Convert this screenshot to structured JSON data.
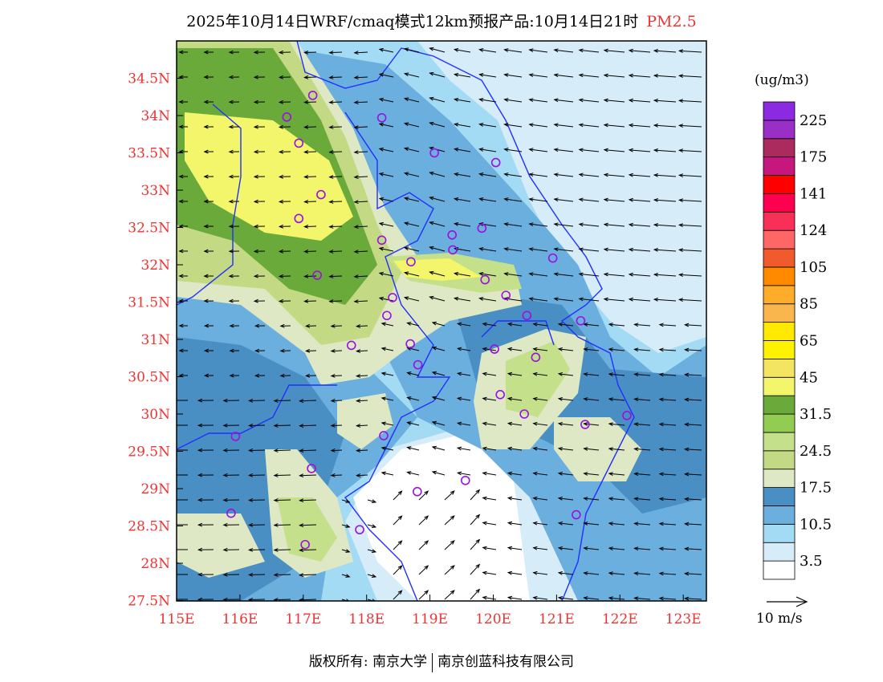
{
  "title": {
    "main": "2025年10月14日WRF/cmaq模式12km预报产品:10月14日21时",
    "species": "PM2.5"
  },
  "species_color": "#e33333",
  "axes": {
    "lon_ticks": [
      "115E",
      "116E",
      "117E",
      "118E",
      "119E",
      "120E",
      "121E",
      "122E",
      "123E"
    ],
    "lon_values": [
      115,
      116,
      117,
      118,
      119,
      120,
      121,
      122,
      123
    ],
    "lat_ticks": [
      "27.5N",
      "28N",
      "28.5N",
      "29N",
      "29.5N",
      "30N",
      "30.5N",
      "31N",
      "31.5N",
      "32N",
      "32.5N",
      "33N",
      "33.5N",
      "34N",
      "34.5N"
    ],
    "lat_values": [
      27.5,
      28,
      28.5,
      29,
      29.5,
      30,
      30.5,
      31,
      31.5,
      32,
      32.5,
      33,
      33.5,
      34,
      34.5
    ],
    "lon_range": [
      115,
      123.4
    ],
    "lat_range": [
      27.5,
      35.0
    ]
  },
  "colorbar": {
    "unit": "(ug/m3)",
    "colors": [
      "#ffffff",
      "#d6ecf8",
      "#a4dbf4",
      "#6aafdd",
      "#4a8fc3",
      "#dfe8c4",
      "#c3d983",
      "#c5e08a",
      "#93cc52",
      "#6aaa3a",
      "#f3f56a",
      "#f3e461",
      "#fff200",
      "#ffe900",
      "#f8b64d",
      "#ffac2a",
      "#ff8a00",
      "#f05a2c",
      "#ff6767",
      "#f83058",
      "#ff0050",
      "#ff0000",
      "#c6177f",
      "#ac2b5e",
      "#9a2fc6",
      "#8b2ae0"
    ],
    "labels": [
      "3.5",
      "10.5",
      "17.5",
      "24.5",
      "31.5",
      "45",
      "65",
      "85",
      "105",
      "124",
      "141",
      "175",
      "225"
    ]
  },
  "wind_legend": {
    "label": "10 m/s"
  },
  "sites": [
    [
      117.15,
      34.27
    ],
    [
      116.74,
      33.98
    ],
    [
      118.24,
      33.97
    ],
    [
      116.93,
      33.63
    ],
    [
      119.07,
      33.5
    ],
    [
      120.04,
      33.37
    ],
    [
      117.28,
      32.94
    ],
    [
      116.93,
      32.62
    ],
    [
      118.24,
      32.33
    ],
    [
      119.35,
      32.4
    ],
    [
      119.82,
      32.49
    ],
    [
      119.36,
      32.2
    ],
    [
      118.7,
      32.04
    ],
    [
      120.94,
      32.09
    ],
    [
      117.22,
      31.86
    ],
    [
      119.87,
      31.8
    ],
    [
      118.41,
      31.56
    ],
    [
      120.2,
      31.59
    ],
    [
      118.32,
      31.32
    ],
    [
      120.53,
      31.32
    ],
    [
      121.38,
      31.25
    ],
    [
      117.76,
      30.92
    ],
    [
      118.69,
      30.94
    ],
    [
      120.02,
      30.87
    ],
    [
      120.67,
      30.76
    ],
    [
      118.81,
      30.66
    ],
    [
      120.11,
      30.26
    ],
    [
      120.49,
      30.0
    ],
    [
      122.11,
      29.98
    ],
    [
      121.45,
      29.86
    ],
    [
      115.93,
      29.7
    ],
    [
      118.27,
      29.71
    ],
    [
      117.13,
      29.27
    ],
    [
      119.56,
      29.11
    ],
    [
      118.8,
      28.96
    ],
    [
      115.86,
      28.67
    ],
    [
      121.31,
      28.65
    ],
    [
      117.89,
      28.45
    ],
    [
      117.03,
      28.25
    ]
  ],
  "footer": {
    "left": "版权所有: 南京大学",
    "right": "南京创蓝科技有限公司"
  }
}
